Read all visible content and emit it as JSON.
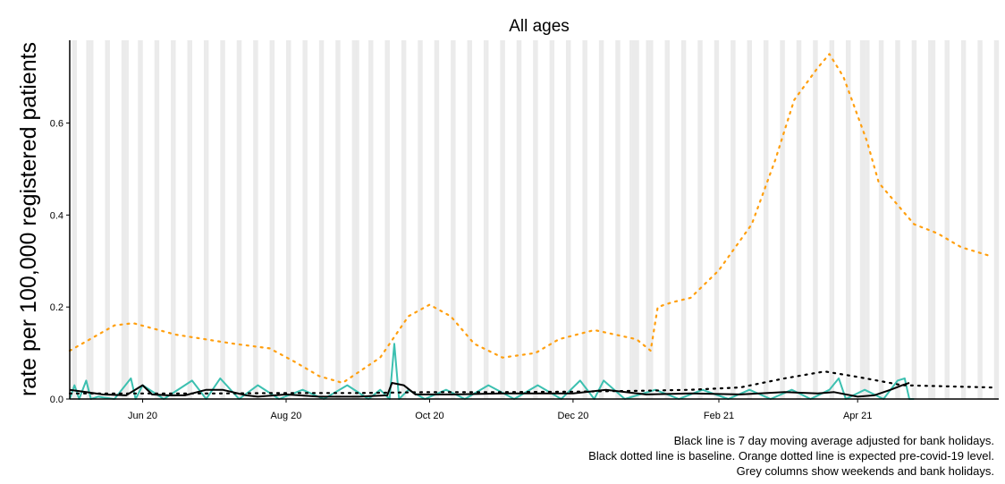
{
  "chart_data": {
    "type": "line",
    "title": "All ages",
    "ylabel": "rate per 100,000 registered patients",
    "xlabel": "",
    "x_range": [
      "2020-05-01",
      "2021-05-31"
    ],
    "ylim": [
      0,
      0.78
    ],
    "y_ticks": [
      0.0,
      0.2,
      0.4,
      0.6
    ],
    "y_tick_labels": [
      "0.0",
      "0.2",
      "0.4",
      "0.6"
    ],
    "x_ticks": [
      "2020-06-01",
      "2020-08-01",
      "2020-10-01",
      "2020-12-01",
      "2021-02-01",
      "2021-04-01"
    ],
    "x_tick_labels": [
      "Jun 20",
      "Aug 20",
      "Oct 20",
      "Dec 20",
      "Feb 21",
      "Apr 21"
    ],
    "bank_holidays": [
      "2020-05-08",
      "2020-05-25",
      "2020-08-31",
      "2020-12-25",
      "2020-12-28",
      "2021-01-01",
      "2021-04-02",
      "2021-04-05",
      "2021-05-03"
    ],
    "series": [
      {
        "role": "expected pre-covid-19 level",
        "style": "dotted",
        "color": "#FF9F0F",
        "x": [
          "2020-05-01",
          "2020-05-20",
          "2020-05-28",
          "2020-06-15",
          "2020-07-10",
          "2020-07-25",
          "2020-08-05",
          "2020-08-15",
          "2020-08-25",
          "2020-09-10",
          "2020-09-22",
          "2020-10-01",
          "2020-10-10",
          "2020-10-20",
          "2020-11-01",
          "2020-11-15",
          "2020-11-25",
          "2020-12-10",
          "2020-12-28",
          "2021-01-03",
          "2021-01-06",
          "2021-01-12",
          "2021-01-20",
          "2021-02-01",
          "2021-02-15",
          "2021-02-25",
          "2021-03-05",
          "2021-03-15",
          "2021-03-20",
          "2021-03-26",
          "2021-04-05",
          "2021-04-10",
          "2021-04-15",
          "2021-04-25",
          "2021-05-05",
          "2021-05-15",
          "2021-05-28"
        ],
        "y": [
          0.105,
          0.16,
          0.165,
          0.14,
          0.12,
          0.11,
          0.08,
          0.05,
          0.035,
          0.09,
          0.18,
          0.205,
          0.18,
          0.12,
          0.09,
          0.1,
          0.13,
          0.15,
          0.13,
          0.105,
          0.2,
          0.21,
          0.22,
          0.28,
          0.38,
          0.52,
          0.65,
          0.72,
          0.75,
          0.7,
          0.56,
          0.47,
          0.44,
          0.38,
          0.36,
          0.33,
          0.31
        ]
      },
      {
        "role": "baseline",
        "style": "dotted",
        "color": "#000000",
        "x": [
          "2020-05-01",
          "2020-06-01",
          "2020-07-01",
          "2020-08-01",
          "2020-09-01",
          "2020-10-01",
          "2020-11-01",
          "2020-12-01",
          "2021-01-01",
          "2021-01-20",
          "2021-02-10",
          "2021-03-01",
          "2021-03-18",
          "2021-04-01",
          "2021-04-20",
          "2021-05-28"
        ],
        "y": [
          0.012,
          0.012,
          0.012,
          0.013,
          0.013,
          0.015,
          0.015,
          0.016,
          0.018,
          0.02,
          0.025,
          0.045,
          0.06,
          0.048,
          0.03,
          0.025
        ]
      },
      {
        "role": "daily rate",
        "style": "solid",
        "color": "#3CC0B0",
        "x": [
          "2020-05-01",
          "2020-05-03",
          "2020-05-05",
          "2020-05-08",
          "2020-05-10",
          "2020-05-13",
          "2020-05-20",
          "2020-05-27",
          "2020-05-29",
          "2020-06-01",
          "2020-06-10",
          "2020-06-22",
          "2020-06-28",
          "2020-07-04",
          "2020-07-12",
          "2020-07-20",
          "2020-07-29",
          "2020-08-08",
          "2020-08-17",
          "2020-08-27",
          "2020-09-05",
          "2020-09-10",
          "2020-09-14",
          "2020-09-16",
          "2020-09-18",
          "2020-09-22",
          "2020-09-29",
          "2020-10-08",
          "2020-10-16",
          "2020-10-26",
          "2020-11-06",
          "2020-11-16",
          "2020-11-26",
          "2020-12-04",
          "2020-12-10",
          "2020-12-14",
          "2020-12-23",
          "2021-01-05",
          "2021-01-15",
          "2021-01-25",
          "2021-02-05",
          "2021-02-14",
          "2021-02-23",
          "2021-03-04",
          "2021-03-12",
          "2021-03-20",
          "2021-03-24",
          "2021-03-27",
          "2021-04-04",
          "2021-04-12",
          "2021-04-18",
          "2021-04-21",
          "2021-04-23",
          "2021-04-25"
        ],
        "y": [
          0.0,
          0.03,
          0.0,
          0.04,
          0.0,
          0.005,
          0.0,
          0.045,
          0.0,
          0.03,
          0.0,
          0.04,
          0.0,
          0.045,
          0.0,
          0.03,
          0.0,
          0.02,
          0.0,
          0.03,
          0.0,
          0.02,
          0.0,
          0.12,
          0.0,
          0.02,
          0.0,
          0.02,
          0.0,
          0.03,
          0.0,
          0.03,
          0.0,
          0.04,
          0.0,
          0.04,
          0.0,
          0.02,
          0.0,
          0.02,
          0.0,
          0.02,
          0.0,
          0.02,
          0.0,
          0.02,
          0.045,
          0.0,
          0.02,
          0.0,
          0.04,
          0.045,
          0.0,
          0.0
        ]
      },
      {
        "role": "7 day moving average adjusted for bank holidays",
        "style": "solid",
        "color": "#000000",
        "x": [
          "2020-05-01",
          "2020-05-08",
          "2020-05-15",
          "2020-05-25",
          "2020-06-01",
          "2020-06-05",
          "2020-06-12",
          "2020-06-19",
          "2020-06-28",
          "2020-07-05",
          "2020-07-15",
          "2020-07-20",
          "2020-08-01",
          "2020-08-15",
          "2020-09-01",
          "2020-09-13",
          "2020-09-15",
          "2020-09-20",
          "2020-09-25",
          "2020-10-10",
          "2020-11-01",
          "2020-12-01",
          "2020-12-15",
          "2021-01-01",
          "2021-01-20",
          "2021-02-10",
          "2021-03-01",
          "2021-03-15",
          "2021-03-22",
          "2021-04-01",
          "2021-04-08",
          "2021-04-15",
          "2021-04-20",
          "2021-04-23"
        ],
        "y": [
          0.02,
          0.015,
          0.01,
          0.008,
          0.03,
          0.01,
          0.008,
          0.008,
          0.02,
          0.02,
          0.008,
          0.005,
          0.01,
          0.005,
          0.005,
          0.008,
          0.035,
          0.03,
          0.01,
          0.01,
          0.012,
          0.012,
          0.02,
          0.01,
          0.012,
          0.01,
          0.015,
          0.012,
          0.015,
          0.005,
          0.008,
          0.02,
          0.03,
          0.035
        ]
      }
    ],
    "captions": [
      "Black line is 7 day moving average adjusted for bank holidays.",
      "Black dotted line is baseline. Orange dotted line is expected pre-covid-19 level.",
      "Grey columns show weekends and bank holidays."
    ],
    "grid": false
  }
}
